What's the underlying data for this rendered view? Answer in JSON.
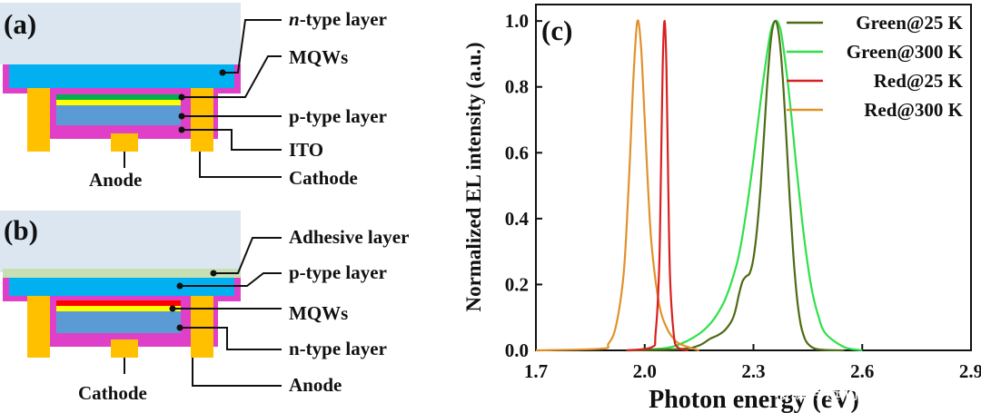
{
  "panel_a": {
    "tag": "(a)",
    "labels": {
      "n_layer": "n-type layer",
      "mqws": "MQWs",
      "p_layer": "p-type layer",
      "ito": "ITO",
      "cathode": "Cathode",
      "anode": "Anode"
    }
  },
  "panel_b": {
    "tag": "(b)",
    "labels": {
      "adhesive": "Adhesive layer",
      "p_layer": "p-type layer",
      "mqws": "MQWs",
      "n_layer": "n-type layer",
      "anode": "Anode",
      "cathode": "Cathode"
    }
  },
  "colors": {
    "substrate": "#dce6f1",
    "top_layer": "#00b0f0",
    "magenta": "#e040c8",
    "contact": "#ffc000",
    "green_mqw": "#00b050",
    "yellow": "#ffff00",
    "p_layer_blue": "#5b9bd5",
    "red_mqw": "#ff0000",
    "adhesive": "#c6e0b4"
  },
  "chart_data": {
    "type": "line",
    "panel_tag": "(c)",
    "xlabel": "Photon energy (eV)",
    "ylabel": "Normalized EL intensity (a.u.)",
    "xlim": [
      1.7,
      2.9
    ],
    "ylim": [
      0,
      1.05
    ],
    "xticks": [
      "1.7",
      "2.0",
      "2.3",
      "2.6",
      "2.9"
    ],
    "xtick_values": [
      1.7,
      2.0,
      2.3,
      2.6,
      2.9
    ],
    "yticks": [
      "0.0",
      "0.2",
      "0.4",
      "0.6",
      "0.8",
      "1.0"
    ],
    "ytick_values": [
      0.0,
      0.2,
      0.4,
      0.6,
      0.8,
      1.0
    ],
    "legend_position": "top-right",
    "series": [
      {
        "name": "Green@25 K",
        "color": "#4f6b16",
        "x": [
          1.95,
          2.1,
          2.15,
          2.18,
          2.2,
          2.22,
          2.24,
          2.25,
          2.26,
          2.27,
          2.28,
          2.29,
          2.3,
          2.31,
          2.32,
          2.33,
          2.34,
          2.35,
          2.36,
          2.37,
          2.38,
          2.39,
          2.4,
          2.41,
          2.42,
          2.43,
          2.44,
          2.45,
          2.47,
          2.5,
          2.55
        ],
        "values": [
          0.0,
          0.004,
          0.015,
          0.035,
          0.045,
          0.06,
          0.09,
          0.12,
          0.17,
          0.21,
          0.225,
          0.235,
          0.28,
          0.37,
          0.5,
          0.67,
          0.84,
          0.96,
          1.0,
          0.96,
          0.84,
          0.66,
          0.46,
          0.29,
          0.16,
          0.08,
          0.04,
          0.02,
          0.005,
          0.001,
          0.0
        ]
      },
      {
        "name": "Green@300 K",
        "color": "#2fe04a",
        "x": [
          1.95,
          2.05,
          2.1,
          2.15,
          2.18,
          2.2,
          2.22,
          2.24,
          2.26,
          2.28,
          2.3,
          2.32,
          2.34,
          2.35,
          2.36,
          2.37,
          2.38,
          2.4,
          2.42,
          2.44,
          2.46,
          2.48,
          2.5,
          2.55,
          2.6
        ],
        "values": [
          0.0,
          0.006,
          0.02,
          0.05,
          0.08,
          0.11,
          0.15,
          0.21,
          0.29,
          0.42,
          0.58,
          0.76,
          0.92,
          0.98,
          1.0,
          0.99,
          0.94,
          0.76,
          0.54,
          0.34,
          0.19,
          0.1,
          0.05,
          0.01,
          0.0
        ]
      },
      {
        "name": "Red@25 K",
        "color": "#d92020",
        "x": [
          1.95,
          2.02,
          2.03,
          2.04,
          2.045,
          2.05,
          2.055,
          2.06,
          2.065,
          2.07,
          2.08,
          2.09,
          2.12
        ],
        "values": [
          0.0,
          0.01,
          0.05,
          0.25,
          0.55,
          0.88,
          1.0,
          0.86,
          0.5,
          0.22,
          0.05,
          0.01,
          0.0
        ]
      },
      {
        "name": "Red@300 K",
        "color": "#e0922a",
        "x": [
          1.7,
          1.88,
          1.9,
          1.92,
          1.94,
          1.95,
          1.96,
          1.97,
          1.98,
          1.99,
          2.0,
          2.01,
          2.02,
          2.04,
          2.06,
          2.08,
          2.1,
          2.15
        ],
        "values": [
          0.0,
          0.005,
          0.02,
          0.07,
          0.21,
          0.37,
          0.6,
          0.85,
          1.0,
          0.92,
          0.7,
          0.48,
          0.31,
          0.14,
          0.07,
          0.035,
          0.018,
          0.0
        ]
      }
    ]
  },
  "watermark": "搜狐号@行家说Display"
}
